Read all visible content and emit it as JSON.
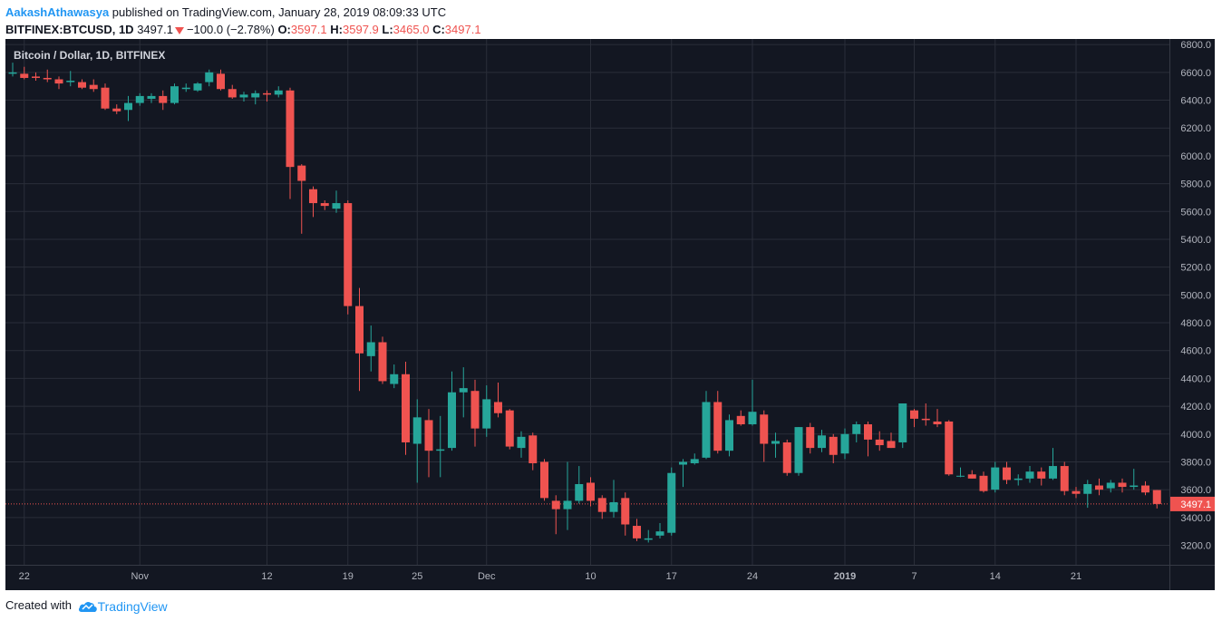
{
  "header": {
    "author": "AakashAthawasya",
    "published_text": "published on TradingView.com, January 28, 2019 08:09:33 UTC",
    "symbol": "BITFINEX:BTCUSD, 1D",
    "last": "3497.1",
    "change": "−100.0 (−2.78%)",
    "o_label": "O:",
    "o": "3597.1",
    "h_label": "H:",
    "h": "3597.9",
    "l_label": "L:",
    "l": "3465.0",
    "c_label": "C:",
    "c": "3497.1"
  },
  "footer": {
    "created_with": "Created with",
    "brand": "TradingView"
  },
  "colors": {
    "background": "#131722",
    "grid": "#2a2e39",
    "up": "#26a69a",
    "down": "#ef5350",
    "axis_text": "#b2b5be",
    "price_line": "#ef5350"
  },
  "chart_data": {
    "type": "candlestick",
    "title": "Bitcoin / Dollar, 1D, BITFINEX",
    "ylim": [
      3060,
      6840
    ],
    "y_ticks": [
      "6800.0",
      "6600.0",
      "6400.0",
      "6200.0",
      "6000.0",
      "5800.0",
      "5600.0",
      "5400.0",
      "5200.0",
      "5000.0",
      "4800.0",
      "4600.0",
      "4400.0",
      "4200.0",
      "4000.0",
      "3800.0",
      "3600.0",
      "3400.0",
      "3200.0"
    ],
    "x_ticks": [
      {
        "label": "22",
        "index": 1
      },
      {
        "label": "Nov",
        "index": 11
      },
      {
        "label": "12",
        "index": 22
      },
      {
        "label": "19",
        "index": 29
      },
      {
        "label": "25",
        "index": 35
      },
      {
        "label": "Dec",
        "index": 41
      },
      {
        "label": "10",
        "index": 50
      },
      {
        "label": "17",
        "index": 57
      },
      {
        "label": "24",
        "index": 64
      },
      {
        "label": "2019",
        "index": 72,
        "bold": true
      },
      {
        "label": "7",
        "index": 78
      },
      {
        "label": "14",
        "index": 85
      },
      {
        "label": "21",
        "index": 92
      }
    ],
    "last_price": 3497.1,
    "candles": [
      [
        6590,
        6670,
        6570,
        6600
      ],
      [
        6590,
        6640,
        6550,
        6560
      ],
      [
        6570,
        6600,
        6540,
        6560
      ],
      [
        6560,
        6620,
        6530,
        6550
      ],
      [
        6550,
        6570,
        6480,
        6520
      ],
      [
        6530,
        6610,
        6500,
        6540
      ],
      [
        6530,
        6550,
        6480,
        6490
      ],
      [
        6510,
        6550,
        6460,
        6480
      ],
      [
        6490,
        6520,
        6330,
        6340
      ],
      [
        6340,
        6370,
        6300,
        6320
      ],
      [
        6330,
        6430,
        6250,
        6380
      ],
      [
        6380,
        6450,
        6360,
        6430
      ],
      [
        6410,
        6450,
        6380,
        6430
      ],
      [
        6430,
        6470,
        6330,
        6380
      ],
      [
        6380,
        6520,
        6370,
        6500
      ],
      [
        6480,
        6520,
        6460,
        6490
      ],
      [
        6470,
        6530,
        6460,
        6520
      ],
      [
        6530,
        6620,
        6500,
        6600
      ],
      [
        6590,
        6620,
        6470,
        6480
      ],
      [
        6480,
        6510,
        6410,
        6420
      ],
      [
        6420,
        6460,
        6390,
        6440
      ],
      [
        6420,
        6470,
        6370,
        6450
      ],
      [
        6450,
        6470,
        6390,
        6440
      ],
      [
        6440,
        6500,
        6420,
        6470
      ],
      [
        6470,
        6490,
        5690,
        5920
      ],
      [
        5930,
        5940,
        5440,
        5820
      ],
      [
        5760,
        5780,
        5560,
        5660
      ],
      [
        5660,
        5680,
        5610,
        5640
      ],
      [
        5620,
        5750,
        5590,
        5660
      ],
      [
        5660,
        5680,
        4860,
        4920
      ],
      [
        4920,
        5050,
        4310,
        4580
      ],
      [
        4560,
        4780,
        4450,
        4660
      ],
      [
        4660,
        4700,
        4360,
        4380
      ],
      [
        4360,
        4500,
        4330,
        4430
      ],
      [
        4430,
        4520,
        3850,
        3940
      ],
      [
        3930,
        4250,
        3650,
        4120
      ],
      [
        4100,
        4180,
        3690,
        3880
      ],
      [
        3880,
        4130,
        3690,
        3890
      ],
      [
        3900,
        4450,
        3880,
        4300
      ],
      [
        4300,
        4480,
        4120,
        4330
      ],
      [
        4310,
        4390,
        3910,
        4040
      ],
      [
        4040,
        4350,
        3980,
        4250
      ],
      [
        4230,
        4370,
        4120,
        4150
      ],
      [
        4170,
        4180,
        3890,
        3910
      ],
      [
        3900,
        4020,
        3830,
        3980
      ],
      [
        3990,
        4010,
        3740,
        3790
      ],
      [
        3800,
        3820,
        3520,
        3540
      ],
      [
        3520,
        3560,
        3280,
        3460
      ],
      [
        3460,
        3800,
        3310,
        3520
      ],
      [
        3520,
        3770,
        3500,
        3640
      ],
      [
        3650,
        3690,
        3480,
        3520
      ],
      [
        3540,
        3560,
        3390,
        3440
      ],
      [
        3440,
        3670,
        3400,
        3510
      ],
      [
        3540,
        3580,
        3270,
        3350
      ],
      [
        3340,
        3390,
        3230,
        3250
      ],
      [
        3240,
        3310,
        3220,
        3250
      ],
      [
        3270,
        3360,
        3250,
        3300
      ],
      [
        3290,
        3760,
        3270,
        3720
      ],
      [
        3780,
        3820,
        3620,
        3800
      ],
      [
        3790,
        3860,
        3780,
        3820
      ],
      [
        3830,
        4310,
        3820,
        4230
      ],
      [
        4230,
        4310,
        3860,
        3880
      ],
      [
        3880,
        4140,
        3840,
        4100
      ],
      [
        4130,
        4170,
        4060,
        4070
      ],
      [
        4070,
        4390,
        4060,
        4160
      ],
      [
        4140,
        4170,
        3800,
        3930
      ],
      [
        3930,
        4010,
        3830,
        3950
      ],
      [
        3940,
        3960,
        3700,
        3720
      ],
      [
        3720,
        4050,
        3700,
        4050
      ],
      [
        4050,
        4080,
        3860,
        3900
      ],
      [
        3900,
        4030,
        3870,
        3990
      ],
      [
        3980,
        4000,
        3790,
        3850
      ],
      [
        3860,
        4040,
        3820,
        4000
      ],
      [
        4000,
        4090,
        3940,
        4070
      ],
      [
        4070,
        4090,
        3840,
        3960
      ],
      [
        3960,
        4020,
        3880,
        3920
      ],
      [
        3950,
        4010,
        3900,
        3900
      ],
      [
        3940,
        4220,
        3900,
        4220
      ],
      [
        4170,
        4180,
        4050,
        4110
      ],
      [
        4110,
        4220,
        4060,
        4100
      ],
      [
        4090,
        4180,
        4050,
        4070
      ],
      [
        4090,
        4100,
        3700,
        3710
      ],
      [
        3700,
        3760,
        3690,
        3700
      ],
      [
        3710,
        3740,
        3680,
        3680
      ],
      [
        3700,
        3730,
        3580,
        3590
      ],
      [
        3600,
        3800,
        3580,
        3760
      ],
      [
        3760,
        3800,
        3640,
        3670
      ],
      [
        3670,
        3710,
        3630,
        3680
      ],
      [
        3680,
        3770,
        3650,
        3730
      ],
      [
        3730,
        3760,
        3630,
        3680
      ],
      [
        3680,
        3900,
        3670,
        3770
      ],
      [
        3770,
        3800,
        3560,
        3590
      ],
      [
        3590,
        3620,
        3540,
        3570
      ],
      [
        3570,
        3670,
        3470,
        3640
      ],
      [
        3630,
        3680,
        3560,
        3600
      ],
      [
        3610,
        3670,
        3580,
        3650
      ],
      [
        3650,
        3680,
        3580,
        3620
      ],
      [
        3620,
        3750,
        3600,
        3630
      ],
      [
        3630,
        3660,
        3560,
        3580
      ],
      [
        3597.1,
        3597.9,
        3465.0,
        3497.1
      ]
    ]
  }
}
